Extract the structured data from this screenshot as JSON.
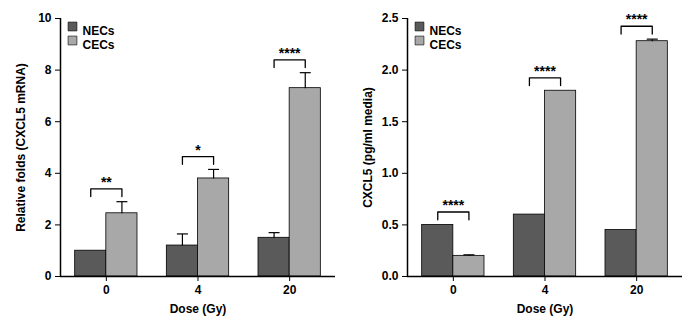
{
  "chart_data": [
    {
      "type": "bar",
      "x_label": "Dose (Gy)",
      "y_label": "Relative folds (CXCL5 mRNA)",
      "categories": [
        "0",
        "4",
        "20"
      ],
      "series": [
        {
          "name": "NECs",
          "color": "#5a5a5a",
          "values": [
            1.0,
            1.2,
            1.5
          ],
          "errors": [
            0,
            0.45,
            0.2
          ]
        },
        {
          "name": "CECs",
          "color": "#a8a8a8",
          "values": [
            2.45,
            3.8,
            7.3
          ],
          "errors": [
            0.45,
            0.35,
            0.6
          ]
        }
      ],
      "ylim": [
        0,
        10
      ],
      "yticks": [
        0,
        2,
        4,
        6,
        8,
        10
      ],
      "legend": "top-left",
      "annotations": [
        {
          "category": "0",
          "label": "**"
        },
        {
          "category": "4",
          "label": "*"
        },
        {
          "category": "20",
          "label": "****"
        }
      ]
    },
    {
      "type": "bar",
      "x_label": "Dose (Gy)",
      "y_label": "CXCL5 (pg/ml media)",
      "categories": [
        "0",
        "4",
        "20"
      ],
      "series": [
        {
          "name": "NECs",
          "color": "#5a5a5a",
          "values": [
            0.5,
            0.6,
            0.45
          ],
          "errors": [
            0,
            0,
            0
          ]
        },
        {
          "name": "CECs",
          "color": "#a8a8a8",
          "values": [
            0.2,
            1.8,
            2.28
          ],
          "errors": [
            0.01,
            0,
            0.02
          ]
        }
      ],
      "ylim": [
        0,
        2.5
      ],
      "yticks": [
        {
          "value": 0,
          "label": "0.0"
        },
        0.5,
        {
          "value": 1,
          "label": "1.0"
        },
        1.5,
        {
          "value": 2,
          "label": "2.0"
        },
        2.5
      ],
      "legend": "top-left",
      "annotations": [
        {
          "category": "0",
          "label": "****"
        },
        {
          "category": "4",
          "label": "****"
        },
        {
          "category": "20",
          "label": "****"
        }
      ]
    }
  ]
}
